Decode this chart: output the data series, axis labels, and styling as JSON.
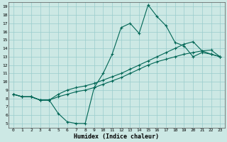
{
  "xlabel": "Humidex (Indice chaleur)",
  "bg_color": "#cce8e4",
  "grid_color": "#99cccc",
  "line_color": "#006655",
  "xlim": [
    -0.5,
    23.5
  ],
  "ylim": [
    4.5,
    19.5
  ],
  "xticks": [
    0,
    1,
    2,
    3,
    4,
    5,
    6,
    7,
    8,
    9,
    10,
    11,
    12,
    13,
    14,
    15,
    16,
    17,
    18,
    19,
    20,
    21,
    22,
    23
  ],
  "yticks": [
    5,
    6,
    7,
    8,
    9,
    10,
    11,
    12,
    13,
    14,
    15,
    16,
    17,
    18,
    19
  ],
  "line1_x": [
    0,
    1,
    2,
    3,
    4,
    5,
    6,
    7,
    8,
    9,
    10,
    11,
    12,
    13,
    14,
    15,
    16,
    17,
    18,
    19,
    20,
    21,
    22,
    23
  ],
  "line1_y": [
    8.5,
    8.2,
    8.2,
    7.8,
    7.8,
    6.2,
    5.2,
    5.0,
    5.0,
    9.3,
    11.0,
    13.3,
    16.5,
    17.0,
    15.8,
    19.2,
    17.8,
    16.7,
    14.7,
    14.3,
    13.0,
    13.5,
    13.3,
    13.0
  ],
  "line2_x": [
    0,
    1,
    2,
    3,
    4,
    5,
    6,
    7,
    8,
    9,
    10,
    11,
    12,
    13,
    14,
    15,
    16,
    17,
    18,
    19,
    20,
    21,
    22,
    23
  ],
  "line2_y": [
    8.5,
    8.2,
    8.2,
    7.8,
    7.8,
    8.2,
    8.5,
    8.8,
    9.0,
    9.3,
    9.7,
    10.1,
    10.5,
    11.0,
    11.5,
    12.0,
    12.4,
    12.7,
    13.0,
    13.3,
    13.5,
    13.7,
    13.8,
    13.0
  ],
  "line3_x": [
    0,
    1,
    2,
    3,
    4,
    5,
    6,
    7,
    8,
    9,
    10,
    11,
    12,
    13,
    14,
    15,
    16,
    17,
    18,
    19,
    20,
    21,
    22,
    23
  ],
  "line3_y": [
    8.5,
    8.2,
    8.2,
    7.8,
    7.8,
    8.5,
    9.0,
    9.3,
    9.5,
    9.8,
    10.2,
    10.6,
    11.0,
    11.5,
    12.0,
    12.5,
    13.0,
    13.5,
    14.0,
    14.5,
    14.8,
    13.7,
    13.3,
    13.0
  ]
}
